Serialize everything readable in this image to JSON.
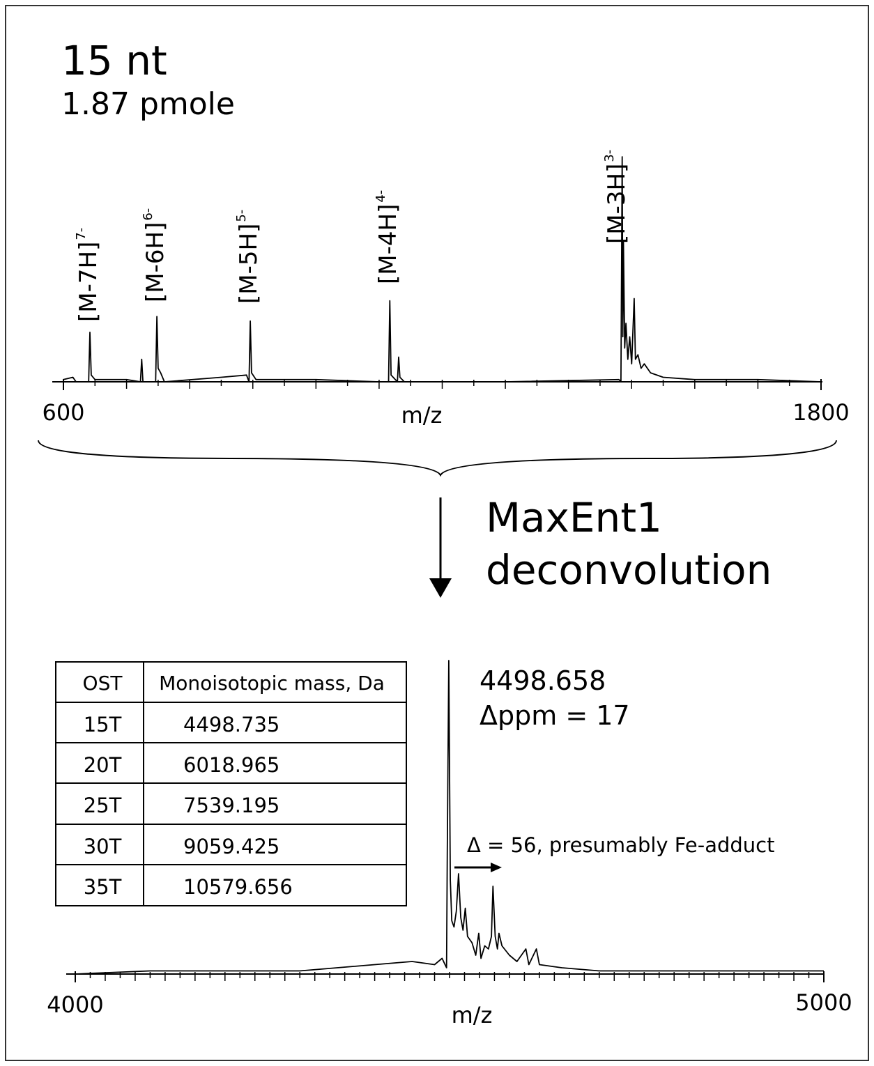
{
  "title": "15 nt",
  "subtitle": "1.87 pmole",
  "step_label": [
    "MaxEnt1",
    "deconvolution"
  ],
  "chart_data": [
    {
      "type": "line",
      "xlabel": "m/z",
      "xlim": [
        600,
        1800
      ],
      "xticks": [
        600,
        1800
      ],
      "xminor_step": 50,
      "ylim": [
        0,
        100
      ],
      "color": "#000000",
      "x": [
        600,
        615,
        620,
        640,
        642,
        644,
        650,
        700,
        722,
        724,
        726,
        746,
        748,
        750,
        754,
        760,
        850,
        890,
        894,
        896,
        898,
        905,
        1000,
        1100,
        1115,
        1117,
        1119,
        1129,
        1131,
        1133,
        1140,
        1300,
        1480,
        1483,
        1485,
        1486,
        1487,
        1489,
        1491,
        1494,
        1497,
        1500,
        1504,
        1506,
        1510,
        1515,
        1520,
        1530,
        1550,
        1600,
        1700,
        1800
      ],
      "values": [
        1,
        2,
        0,
        0,
        22,
        3,
        1,
        1,
        0,
        10,
        0,
        0,
        29,
        6,
        4,
        0,
        2,
        3,
        0,
        27,
        4,
        1,
        1,
        0,
        0,
        36,
        3,
        0,
        11,
        2,
        0,
        0,
        1,
        0,
        100,
        20,
        62,
        15,
        26,
        10,
        20,
        8,
        37,
        10,
        12,
        6,
        8,
        4,
        2,
        1,
        1,
        0
      ],
      "peak_labels": [
        {
          "text": "[M-7H]",
          "charge": "7-",
          "x": 642
        },
        {
          "text": "[M-6H]",
          "charge": "6-",
          "x": 748
        },
        {
          "text": "[M-5H]",
          "charge": "5-",
          "x": 896
        },
        {
          "text": "[M-4H]",
          "charge": "4-",
          "x": 1117
        },
        {
          "text": "[M-3H]",
          "charge": "3-",
          "x": 1485
        }
      ]
    },
    {
      "type": "line",
      "xlabel": "m/z",
      "xlim": [
        4000,
        5000
      ],
      "xticks": [
        4000,
        5000
      ],
      "xminor_step": 20,
      "ylim": [
        0,
        100
      ],
      "color": "#000000",
      "x": [
        4000,
        4100,
        4200,
        4300,
        4350,
        4400,
        4450,
        4480,
        4490,
        4496,
        4497,
        4499,
        4501,
        4503,
        4506,
        4509,
        4512,
        4515,
        4518,
        4521,
        4524,
        4530,
        4535,
        4539,
        4542,
        4547,
        4552,
        4556,
        4558,
        4561,
        4564,
        4566,
        4570,
        4580,
        4590,
        4602,
        4606,
        4616,
        4620,
        4650,
        4700,
        4800,
        4900,
        5000
      ],
      "values": [
        0,
        1,
        1,
        1,
        2,
        3,
        4,
        3,
        5,
        2,
        40,
        100,
        30,
        17,
        15,
        20,
        32,
        18,
        14,
        21,
        12,
        10,
        6,
        13,
        5,
        9,
        8,
        12,
        28,
        12,
        8,
        13,
        9,
        6,
        4,
        8,
        3,
        8,
        3,
        2,
        1,
        1,
        1,
        1
      ],
      "annotations": [
        "4498.658",
        "Δppm = 17",
        "Δ = 56, presumably Fe-adduct"
      ]
    }
  ],
  "table": {
    "header": [
      "OST",
      "Monoisotopic mass, Da"
    ],
    "rows": [
      [
        "15T",
        "4498.735"
      ],
      [
        "20T",
        "6018.965"
      ],
      [
        "25T",
        "7539.195"
      ],
      [
        "30T",
        "9059.425"
      ],
      [
        "35T",
        "10579.656"
      ]
    ]
  }
}
